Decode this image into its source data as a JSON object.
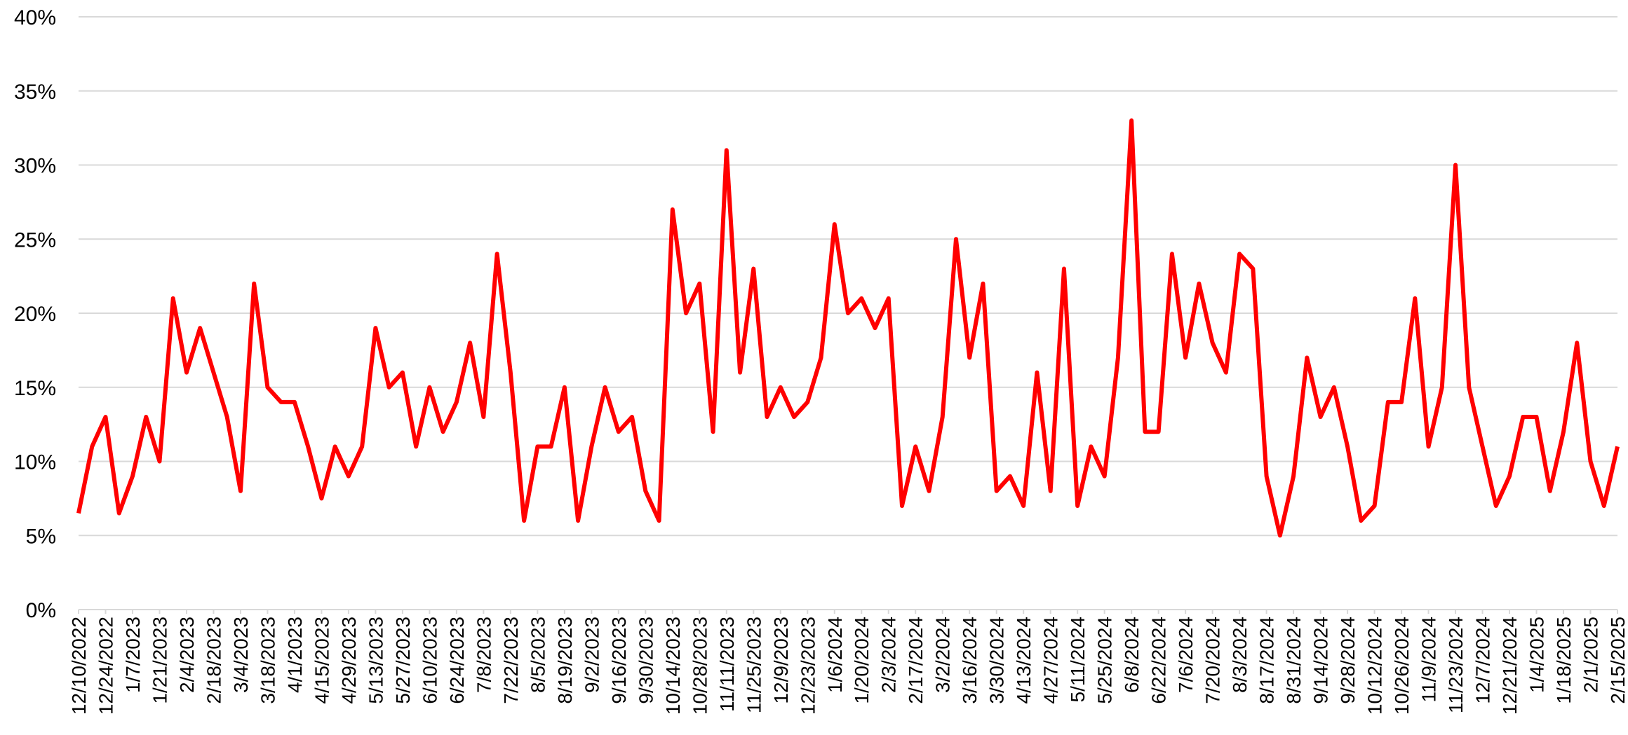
{
  "chart_data": {
    "type": "line",
    "x": [
      "12/10/2022",
      "12/17/2022",
      "12/24/2022",
      "12/31/2022",
      "1/7/2023",
      "1/14/2023",
      "1/21/2023",
      "1/28/2023",
      "2/4/2023",
      "2/11/2023",
      "2/18/2023",
      "2/25/2023",
      "3/4/2023",
      "3/11/2023",
      "3/18/2023",
      "3/25/2023",
      "4/1/2023",
      "4/8/2023",
      "4/15/2023",
      "4/22/2023",
      "4/29/2023",
      "5/6/2023",
      "5/13/2023",
      "5/20/2023",
      "5/27/2023",
      "6/3/2023",
      "6/10/2023",
      "6/17/2023",
      "6/24/2023",
      "7/1/2023",
      "7/8/2023",
      "7/15/2023",
      "7/22/2023",
      "7/29/2023",
      "8/5/2023",
      "8/12/2023",
      "8/19/2023",
      "8/26/2023",
      "9/2/2023",
      "9/9/2023",
      "9/16/2023",
      "9/23/2023",
      "9/30/2023",
      "10/7/2023",
      "10/14/2023",
      "10/21/2023",
      "10/28/2023",
      "11/4/2023",
      "11/11/2023",
      "11/18/2023",
      "11/25/2023",
      "12/2/2023",
      "12/9/2023",
      "12/16/2023",
      "12/23/2023",
      "12/30/2023",
      "1/6/2024",
      "1/13/2024",
      "1/20/2024",
      "1/27/2024",
      "2/3/2024",
      "2/10/2024",
      "2/17/2024",
      "2/24/2024",
      "3/2/2024",
      "3/9/2024",
      "3/16/2024",
      "3/23/2024",
      "3/30/2024",
      "4/6/2024",
      "4/13/2024",
      "4/20/2024",
      "4/27/2024",
      "5/4/2024",
      "5/11/2024",
      "5/18/2024",
      "5/25/2024",
      "6/1/2024",
      "6/8/2024",
      "6/15/2024",
      "6/22/2024",
      "6/29/2024",
      "7/6/2024",
      "7/13/2024",
      "7/20/2024",
      "7/27/2024",
      "8/3/2024",
      "8/10/2024",
      "8/17/2024",
      "8/24/2024",
      "8/31/2024",
      "9/7/2024",
      "9/14/2024",
      "9/21/2024",
      "9/28/2024",
      "10/5/2024",
      "10/12/2024",
      "10/19/2024",
      "10/26/2024",
      "11/2/2024",
      "11/9/2024",
      "11/16/2024",
      "11/23/2024",
      "11/30/2024",
      "12/7/2024",
      "12/14/2024",
      "12/21/2024",
      "12/28/2024",
      "1/4/2025",
      "1/11/2025",
      "1/18/2025",
      "1/25/2025",
      "2/1/2025",
      "2/8/2025",
      "2/15/2025"
    ],
    "series": [
      {
        "color": "#ff0000",
        "values": [
          6.5,
          11,
          13,
          6.5,
          9,
          13,
          10,
          21,
          16,
          19,
          16,
          13,
          8,
          22,
          15,
          14,
          14,
          11,
          7.5,
          11,
          9,
          11,
          19,
          15,
          16,
          11,
          15,
          12,
          14,
          18,
          13,
          24,
          16,
          6,
          11,
          11,
          15,
          6,
          11,
          15,
          12,
          13,
          8,
          6,
          27,
          20,
          22,
          12,
          31,
          16,
          23,
          13,
          15,
          13,
          14,
          17,
          26,
          20,
          21,
          19,
          21,
          7,
          11,
          8,
          13,
          25,
          17,
          22,
          8,
          9,
          7,
          16,
          8,
          23,
          7,
          11,
          9,
          17,
          33,
          12,
          12,
          24,
          17,
          22,
          18,
          16,
          24,
          23,
          9,
          5,
          9,
          17,
          13,
          15,
          11,
          6,
          7,
          14,
          14,
          21,
          11,
          15,
          30,
          15,
          11,
          7,
          9,
          13,
          13,
          8,
          12,
          18,
          10,
          7,
          11
        ]
      }
    ],
    "xlim": [
      "12/10/2022",
      "2/15/2025"
    ],
    "xticks": [
      "12/10/2022",
      "12/24/2022",
      "1/7/2023",
      "1/21/2023",
      "2/4/2023",
      "2/18/2023",
      "3/4/2023",
      "3/18/2023",
      "4/1/2023",
      "4/15/2023",
      "4/29/2023",
      "5/13/2023",
      "5/27/2023",
      "6/10/2023",
      "6/24/2023",
      "7/8/2023",
      "7/22/2023",
      "8/5/2023",
      "8/19/2023",
      "9/2/2023",
      "9/16/2023",
      "9/30/2023",
      "10/14/2023",
      "10/28/2023",
      "11/11/2023",
      "11/25/2023",
      "12/9/2023",
      "12/23/2023",
      "1/6/2024",
      "1/20/2024",
      "2/3/2024",
      "2/17/2024",
      "3/2/2024",
      "3/16/2024",
      "3/30/2024",
      "4/13/2024",
      "4/27/2024",
      "5/11/2024",
      "5/25/2024",
      "6/8/2024",
      "6/22/2024",
      "7/6/2024",
      "7/20/2024",
      "8/3/2024",
      "8/17/2024",
      "8/31/2024",
      "9/14/2024",
      "9/28/2024",
      "10/12/2024",
      "10/26/2024",
      "11/9/2024",
      "11/23/2024",
      "12/7/2024",
      "12/21/2024",
      "1/4/2025",
      "1/18/2025",
      "2/1/2025",
      "2/15/2025"
    ],
    "ylim": [
      0,
      40
    ],
    "yticks": [
      {
        "value": 0,
        "label": "0%"
      },
      {
        "value": 5,
        "label": "5%"
      },
      {
        "value": 10,
        "label": "10%"
      },
      {
        "value": 15,
        "label": "15%"
      },
      {
        "value": 20,
        "label": "20%"
      },
      {
        "value": 25,
        "label": "25%"
      },
      {
        "value": 30,
        "label": "30%"
      },
      {
        "value": 35,
        "label": "35%"
      },
      {
        "value": 40,
        "label": "40%"
      }
    ],
    "grid": true
  }
}
